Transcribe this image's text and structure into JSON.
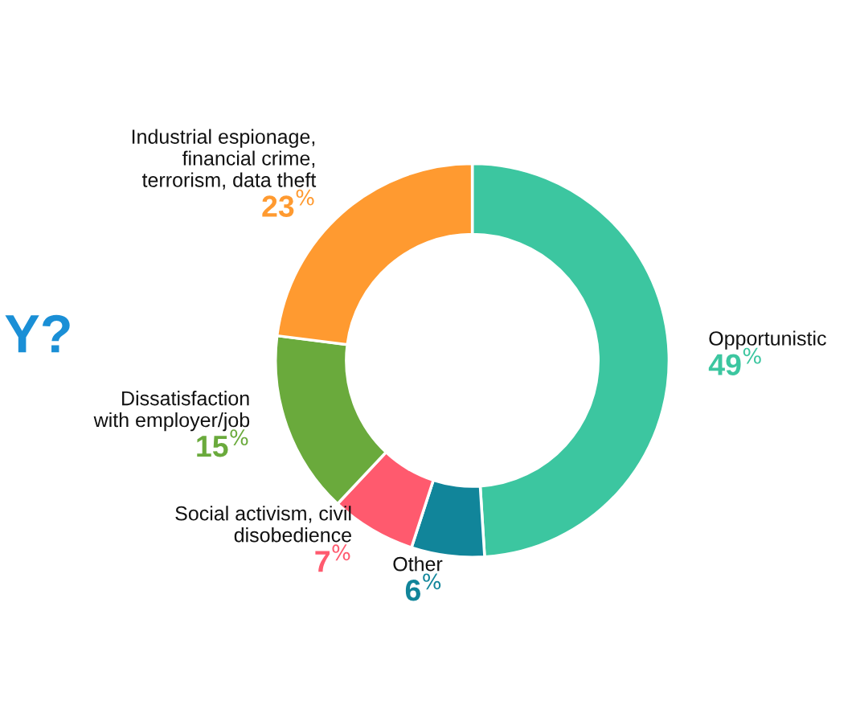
{
  "chart_data": {
    "type": "donut",
    "categories": [
      "Opportunistic",
      "Other",
      "Social activism, civil\ndisobedience",
      "Dissatisfaction\nwith employer/job",
      "Industrial espionage,\nfinancial crime,\nterrorism, data theft"
    ],
    "values": [
      49,
      6,
      7,
      15,
      23
    ],
    "colors": [
      "#3cc6a0",
      "#11859a",
      "#ff5a6e",
      "#6aaa3c",
      "#ff9a30"
    ],
    "value_labels": [
      "49$^{%}$",
      "6$^{%}$",
      "7$^{%}$",
      "15$^{%}$",
      "23$^{%}$"
    ],
    "annotations": [
      "Y?"
    ],
    "legend": false
  }
}
